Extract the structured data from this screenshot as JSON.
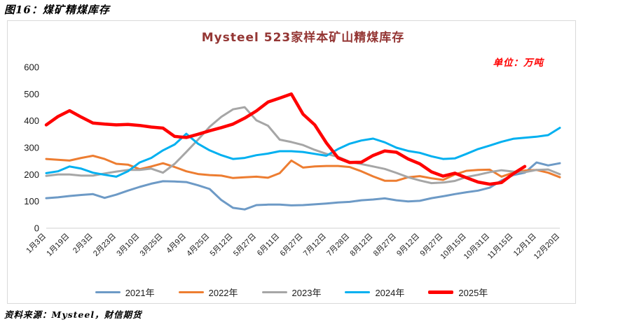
{
  "figure": {
    "caption": "图16：煤矿精煤库存",
    "source": "资料来源：Mysteel，财信期货"
  },
  "chart_data": {
    "type": "line",
    "title": "Mysteel 523家样本矿山精煤库存",
    "title_color": "#943634",
    "unit_label": "单位：万吨",
    "unit_label_color": "#ff0000",
    "grid": false,
    "legend_position": "bottom",
    "ylim": [
      0,
      600
    ],
    "y_ticks": [
      0,
      100,
      200,
      300,
      400,
      500,
      600
    ],
    "categories": [
      "1月3日",
      "1月19日",
      "2月3日",
      "2月23日",
      "3月10日",
      "3月25日",
      "4月9日",
      "4月25日",
      "5月12日",
      "5月27日",
      "6月11日",
      "6月27日",
      "7月12日",
      "7月28日",
      "8月12日",
      "8月27日",
      "9月12日",
      "9月27日",
      "10月15日",
      "10月31日",
      "11月15日",
      "12月1日",
      "12月20日"
    ],
    "points_per_label_gap": 2,
    "series": [
      {
        "name": "2021年",
        "color": "#6D9AC6",
        "width": 3,
        "values": [
          112,
          115,
          120,
          124,
          127,
          113,
          125,
          140,
          154,
          166,
          175,
          174,
          172,
          160,
          146,
          105,
          76,
          70,
          86,
          88,
          88,
          85,
          86,
          89,
          92,
          96,
          98,
          104,
          107,
          111,
          104,
          100,
          102,
          112,
          119,
          127,
          134,
          140,
          151,
          178,
          198,
          207,
          245,
          234,
          242
        ]
      },
      {
        "name": "2022年",
        "color": "#ED7D31",
        "width": 3,
        "values": [
          258,
          255,
          252,
          262,
          270,
          258,
          240,
          237,
          220,
          230,
          242,
          228,
          212,
          202,
          198,
          196,
          187,
          190,
          192,
          188,
          205,
          252,
          226,
          230,
          232,
          232,
          228,
          212,
          193,
          177,
          177,
          190,
          194,
          186,
          180,
          200,
          214,
          217,
          218,
          192,
          207,
          215,
          217,
          207,
          190
        ]
      },
      {
        "name": "2023年",
        "color": "#A6A6A6",
        "width": 3,
        "values": [
          195,
          200,
          200,
          196,
          196,
          204,
          211,
          217,
          217,
          222,
          207,
          240,
          284,
          330,
          378,
          415,
          443,
          451,
          402,
          382,
          330,
          321,
          310,
          292,
          277,
          266,
          247,
          239,
          230,
          221,
          206,
          190,
          178,
          168,
          170,
          176,
          191,
          199,
          209,
          216,
          211,
          209,
          217,
          219,
          201
        ]
      },
      {
        "name": "2024年",
        "color": "#00B0F0",
        "width": 3,
        "values": [
          205,
          212,
          230,
          222,
          207,
          199,
          192,
          212,
          245,
          262,
          290,
          312,
          352,
          315,
          290,
          272,
          258,
          262,
          272,
          278,
          287,
          287,
          284,
          277,
          270,
          295,
          315,
          327,
          334,
          320,
          300,
          288,
          281,
          268,
          258,
          260,
          277,
          295,
          308,
          322,
          333,
          337,
          341,
          347,
          374
        ]
      },
      {
        "name": "2025年",
        "color": "#FF0000",
        "width": 4.5,
        "values": [
          385,
          416,
          438,
          414,
          392,
          388,
          385,
          387,
          383,
          377,
          373,
          342,
          338,
          350,
          363,
          375,
          388,
          410,
          437,
          470,
          485,
          500,
          425,
          385,
          318,
          262,
          245,
          246,
          271,
          288,
          283,
          258,
          240,
          210,
          194,
          205,
          188,
          172,
          164,
          170,
          203,
          230
        ]
      }
    ]
  }
}
